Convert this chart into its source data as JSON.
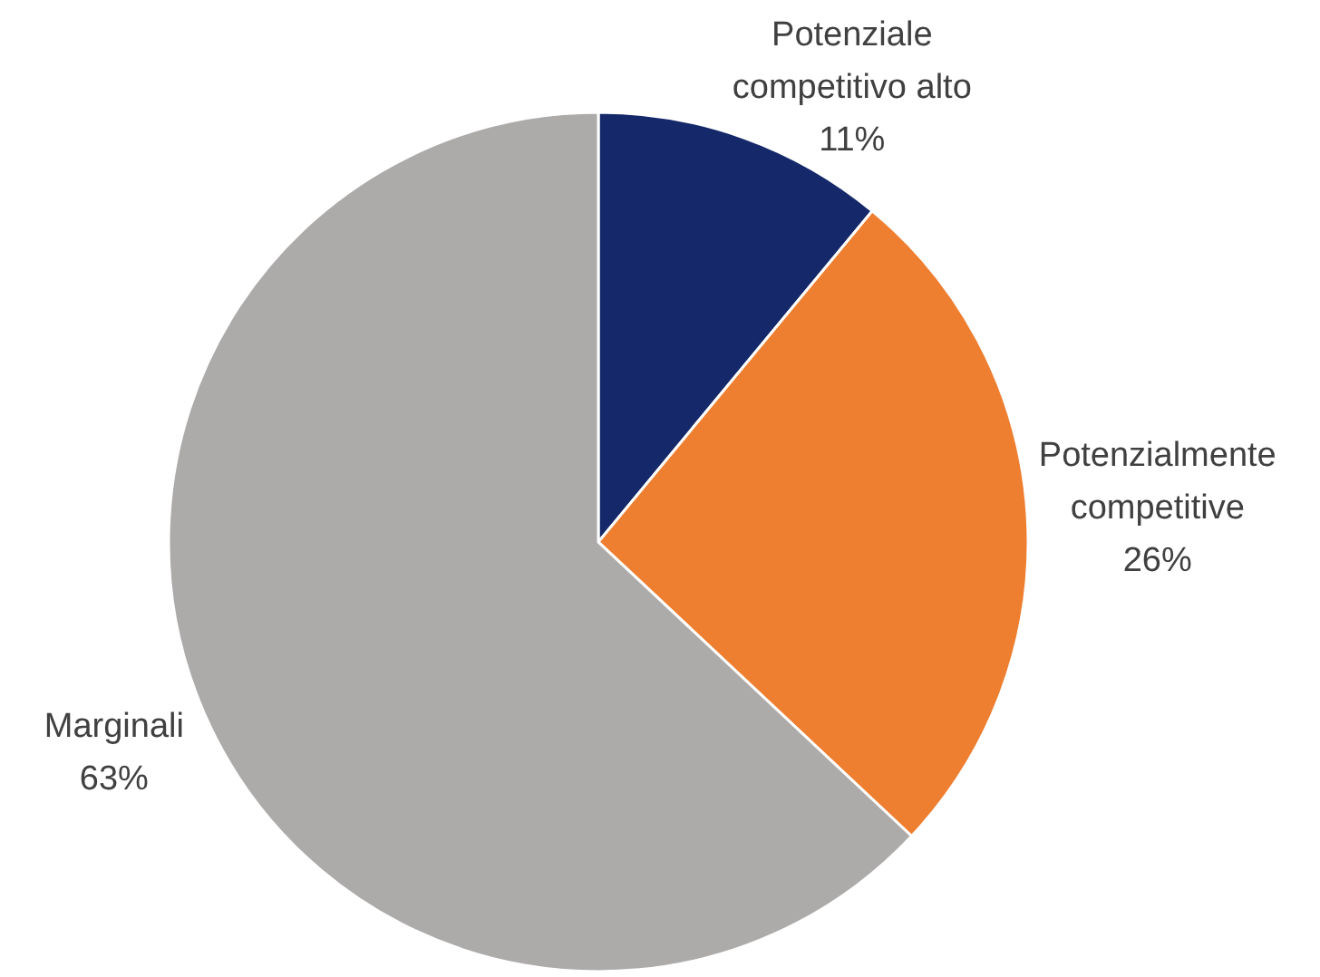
{
  "chart_data": {
    "type": "pie",
    "categories": [
      "Potenziale competitivo alto",
      "Potenzialmente competitive",
      "Marginali"
    ],
    "values": [
      11,
      26,
      63
    ],
    "colors": [
      "#14286a",
      "#ee7f31",
      "#adaaaa"
    ],
    "value_labels": [
      "11%",
      "26%",
      "63%"
    ]
  }
}
